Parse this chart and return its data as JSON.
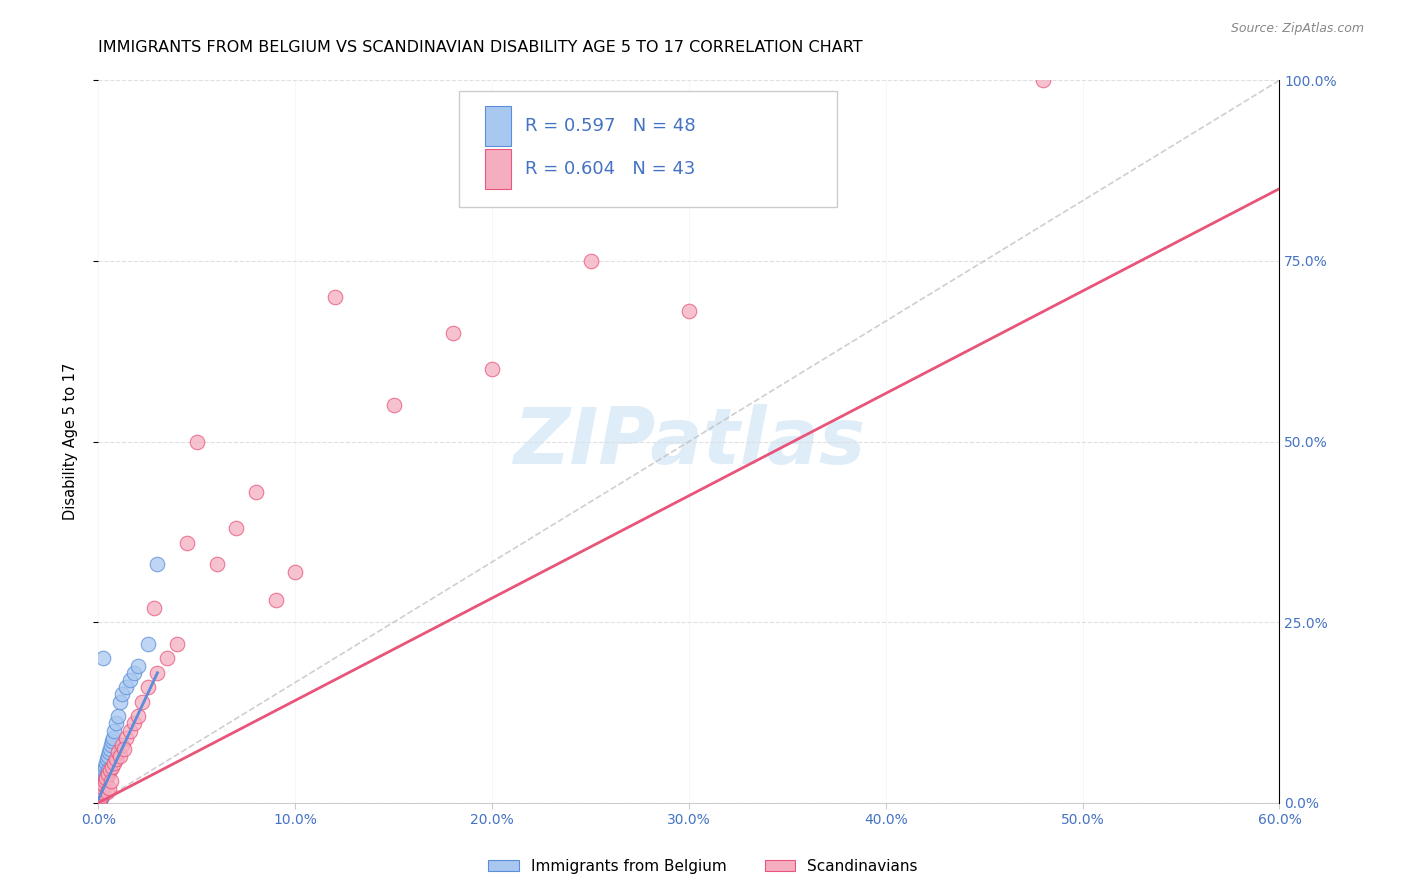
{
  "title": "IMMIGRANTS FROM BELGIUM VS SCANDINAVIAN DISABILITY AGE 5 TO 17 CORRELATION CHART",
  "source": "Source: ZipAtlas.com",
  "ylabel": "Disability Age 5 to 17",
  "xlim": [
    0.0,
    60.0
  ],
  "ylim": [
    0.0,
    100.0
  ],
  "xticks": [
    0.0,
    10.0,
    20.0,
    30.0,
    40.0,
    50.0,
    60.0
  ],
  "yticks": [
    0.0,
    25.0,
    50.0,
    75.0,
    100.0
  ],
  "belgium_color": "#a8c8f0",
  "scandinavia_color": "#f5aec0",
  "belgium_R": 0.597,
  "belgium_N": 48,
  "scandinavia_R": 0.604,
  "scandinavia_N": 43,
  "belgium_line_color": "#5b8dd9",
  "scandinavia_line_color": "#e8547a",
  "reference_line_color": "#bbbbbb",
  "watermark_text": "ZIPatlas",
  "watermark_color": "#c5dff5",
  "legend_label_belgium": "Immigrants from Belgium",
  "legend_label_scandinavia": "Scandinavians",
  "title_fontsize": 11.5,
  "axis_tick_color": "#4472c4",
  "bel_x": [
    0.05,
    0.07,
    0.08,
    0.09,
    0.1,
    0.11,
    0.12,
    0.13,
    0.14,
    0.15,
    0.16,
    0.17,
    0.18,
    0.19,
    0.2,
    0.22,
    0.23,
    0.24,
    0.25,
    0.27,
    0.28,
    0.3,
    0.32,
    0.35,
    0.38,
    0.4,
    0.42,
    0.45,
    0.48,
    0.5,
    0.55,
    0.6,
    0.65,
    0.7,
    0.75,
    0.8,
    0.9,
    1.0,
    1.1,
    1.2,
    1.4,
    1.6,
    1.8,
    2.0,
    2.5,
    3.0,
    0.06,
    0.21
  ],
  "bel_y": [
    0.3,
    0.5,
    0.8,
    1.0,
    1.2,
    1.5,
    0.7,
    1.8,
    2.0,
    2.2,
    1.0,
    2.5,
    2.8,
    3.0,
    1.5,
    3.2,
    2.0,
    3.5,
    2.5,
    4.0,
    3.0,
    4.5,
    2.8,
    5.0,
    3.5,
    5.5,
    4.0,
    6.0,
    4.5,
    6.5,
    7.0,
    7.5,
    8.0,
    8.5,
    9.0,
    10.0,
    11.0,
    12.0,
    14.0,
    15.0,
    16.0,
    17.0,
    18.0,
    19.0,
    22.0,
    33.0,
    0.4,
    20.0
  ],
  "scan_x": [
    0.1,
    0.15,
    0.2,
    0.25,
    0.3,
    0.35,
    0.4,
    0.45,
    0.5,
    0.55,
    0.6,
    0.7,
    0.8,
    0.9,
    1.0,
    1.1,
    1.2,
    1.4,
    1.6,
    1.8,
    2.0,
    2.2,
    2.5,
    3.0,
    3.5,
    4.0,
    5.0,
    6.0,
    7.0,
    8.0,
    9.0,
    10.0,
    12.0,
    15.0,
    18.0,
    20.0,
    25.0,
    30.0,
    48.0,
    0.65,
    1.3,
    2.8,
    4.5
  ],
  "scan_y": [
    0.5,
    1.0,
    1.5,
    2.0,
    2.5,
    3.0,
    3.5,
    1.5,
    4.0,
    2.0,
    4.5,
    5.0,
    5.5,
    6.0,
    7.0,
    6.5,
    8.0,
    9.0,
    10.0,
    11.0,
    12.0,
    14.0,
    16.0,
    18.0,
    20.0,
    22.0,
    50.0,
    33.0,
    38.0,
    43.0,
    28.0,
    32.0,
    70.0,
    55.0,
    65.0,
    60.0,
    75.0,
    68.0,
    100.0,
    3.0,
    7.5,
    27.0,
    36.0
  ],
  "bel_line_x0": 0.0,
  "bel_line_y0": 0.5,
  "bel_line_x1": 3.0,
  "bel_line_y1": 18.0,
  "scan_line_x0": 0.0,
  "scan_line_y0": 0.0,
  "scan_line_x1": 60.0,
  "scan_line_y1": 85.0
}
